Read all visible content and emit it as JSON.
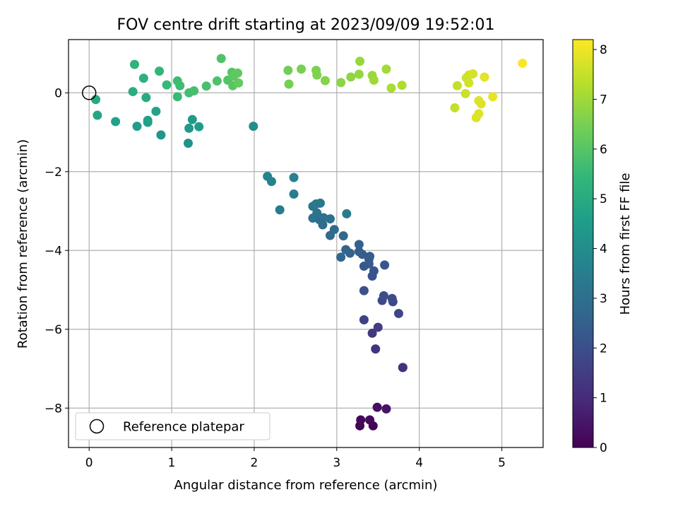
{
  "chart_data": {
    "type": "scatter",
    "title": "FOV centre drift starting at 2023/09/09 19:52:01",
    "xlabel": "Angular distance from reference (arcmin)",
    "ylabel": "Rotation from reference (arcmin)",
    "xlim": [
      -0.25,
      5.5
    ],
    "ylim": [
      -9.0,
      1.35
    ],
    "xticks": [
      0,
      1,
      2,
      3,
      4,
      5
    ],
    "yticks": [
      -8,
      -6,
      -4,
      -2,
      0
    ],
    "grid": true,
    "legend": {
      "placement": "lower-left",
      "entries": [
        "Reference platepar"
      ]
    },
    "reference_point": {
      "x": 0,
      "y": 0
    },
    "colorbar": {
      "label": "Hours from first FF file",
      "range": [
        0,
        8.2
      ],
      "ticks": [
        0,
        1,
        2,
        3,
        4,
        5,
        6,
        7,
        8
      ],
      "colormap": [
        "#440154",
        "#482878",
        "#3e4989",
        "#31688e",
        "#26828e",
        "#1f9e89",
        "#35b779",
        "#6ece58",
        "#b5de2b",
        "#fde725"
      ]
    },
    "series": [
      {
        "points": [
          {
            "x": 3.28,
            "y": -8.45,
            "h": 0.05
          },
          {
            "x": 3.44,
            "y": -8.45,
            "h": 0.1
          },
          {
            "x": 3.29,
            "y": -8.3,
            "h": 0.15
          },
          {
            "x": 3.4,
            "y": -8.3,
            "h": 0.2
          },
          {
            "x": 3.49,
            "y": -7.98,
            "h": 0.35
          },
          {
            "x": 3.6,
            "y": -8.02,
            "h": 0.45
          },
          {
            "x": 3.8,
            "y": -6.97,
            "h": 1.1
          },
          {
            "x": 3.8,
            "y": -6.97,
            "h": 1.15
          },
          {
            "x": 3.47,
            "y": -6.5,
            "h": 1.25
          },
          {
            "x": 3.43,
            "y": -6.1,
            "h": 1.35
          },
          {
            "x": 3.5,
            "y": -5.95,
            "h": 1.45
          },
          {
            "x": 3.33,
            "y": -5.76,
            "h": 1.6
          },
          {
            "x": 3.75,
            "y": -5.6,
            "h": 1.7
          },
          {
            "x": 3.68,
            "y": -5.3,
            "h": 1.8
          },
          {
            "x": 3.55,
            "y": -5.27,
            "h": 1.85
          },
          {
            "x": 3.67,
            "y": -5.22,
            "h": 1.9
          },
          {
            "x": 3.57,
            "y": -5.15,
            "h": 1.95
          },
          {
            "x": 3.33,
            "y": -5.02,
            "h": 2.05
          },
          {
            "x": 3.43,
            "y": -4.65,
            "h": 2.1
          },
          {
            "x": 3.45,
            "y": -4.52,
            "h": 2.15
          },
          {
            "x": 3.58,
            "y": -4.37,
            "h": 2.2
          },
          {
            "x": 3.33,
            "y": -4.4,
            "h": 2.25
          },
          {
            "x": 3.39,
            "y": -4.34,
            "h": 2.3
          },
          {
            "x": 3.39,
            "y": -4.22,
            "h": 2.35
          },
          {
            "x": 3.4,
            "y": -4.15,
            "h": 2.4
          },
          {
            "x": 3.31,
            "y": -4.1,
            "h": 2.45
          },
          {
            "x": 3.27,
            "y": -4.03,
            "h": 2.5
          },
          {
            "x": 3.27,
            "y": -3.85,
            "h": 2.55
          },
          {
            "x": 3.16,
            "y": -4.07,
            "h": 2.6
          },
          {
            "x": 3.11,
            "y": -3.98,
            "h": 2.65
          },
          {
            "x": 3.05,
            "y": -4.17,
            "h": 2.7
          },
          {
            "x": 3.08,
            "y": -3.63,
            "h": 2.75
          },
          {
            "x": 2.97,
            "y": -3.47,
            "h": 2.8
          },
          {
            "x": 2.92,
            "y": -3.62,
            "h": 2.85
          },
          {
            "x": 2.83,
            "y": -3.35,
            "h": 2.9
          },
          {
            "x": 2.79,
            "y": -3.22,
            "h": 2.95
          },
          {
            "x": 2.84,
            "y": -3.17,
            "h": 3.0
          },
          {
            "x": 2.92,
            "y": -3.2,
            "h": 3.05
          },
          {
            "x": 2.71,
            "y": -3.18,
            "h": 3.1
          },
          {
            "x": 2.76,
            "y": -3.05,
            "h": 3.15
          },
          {
            "x": 2.71,
            "y": -2.88,
            "h": 3.2
          },
          {
            "x": 2.75,
            "y": -2.82,
            "h": 3.25
          },
          {
            "x": 2.8,
            "y": -2.8,
            "h": 3.3
          },
          {
            "x": 3.12,
            "y": -3.07,
            "h": 3.35
          },
          {
            "x": 2.31,
            "y": -2.97,
            "h": 3.4
          },
          {
            "x": 2.48,
            "y": -2.57,
            "h": 3.5
          },
          {
            "x": 2.48,
            "y": -2.15,
            "h": 3.6
          },
          {
            "x": 2.21,
            "y": -2.25,
            "h": 3.65
          },
          {
            "x": 2.16,
            "y": -2.12,
            "h": 3.7
          },
          {
            "x": 1.99,
            "y": -0.85,
            "h": 4.0
          },
          {
            "x": 1.2,
            "y": -1.28,
            "h": 4.2
          },
          {
            "x": 0.87,
            "y": -1.07,
            "h": 4.3
          },
          {
            "x": 1.21,
            "y": -0.9,
            "h": 4.4
          },
          {
            "x": 1.33,
            "y": -0.86,
            "h": 4.45
          },
          {
            "x": 1.25,
            "y": -0.68,
            "h": 4.5
          },
          {
            "x": 0.58,
            "y": -0.85,
            "h": 4.55
          },
          {
            "x": 0.71,
            "y": -0.75,
            "h": 4.6
          },
          {
            "x": 0.71,
            "y": -0.7,
            "h": 4.65
          },
          {
            "x": 0.32,
            "y": -0.73,
            "h": 4.7
          },
          {
            "x": 0.81,
            "y": -0.47,
            "h": 4.75
          },
          {
            "x": 0.1,
            "y": -0.57,
            "h": 4.8
          },
          {
            "x": 0.08,
            "y": -0.17,
            "h": 4.9
          },
          {
            "x": 0.69,
            "y": -0.12,
            "h": 5.0
          },
          {
            "x": 0.53,
            "y": 0.03,
            "h": 5.1
          },
          {
            "x": 0.66,
            "y": 0.37,
            "h": 5.2
          },
          {
            "x": 0.55,
            "y": 0.72,
            "h": 5.3
          },
          {
            "x": 0.85,
            "y": 0.55,
            "h": 5.4
          },
          {
            "x": 0.94,
            "y": 0.2,
            "h": 5.5
          },
          {
            "x": 1.07,
            "y": -0.1,
            "h": 5.55
          },
          {
            "x": 1.07,
            "y": 0.3,
            "h": 5.6
          },
          {
            "x": 1.1,
            "y": 0.18,
            "h": 5.65
          },
          {
            "x": 1.21,
            "y": 0.0,
            "h": 5.7
          },
          {
            "x": 1.27,
            "y": 0.05,
            "h": 5.75
          },
          {
            "x": 1.42,
            "y": 0.17,
            "h": 5.8
          },
          {
            "x": 1.55,
            "y": 0.3,
            "h": 5.85
          },
          {
            "x": 1.6,
            "y": 0.87,
            "h": 5.9
          },
          {
            "x": 1.68,
            "y": 0.32,
            "h": 5.95
          },
          {
            "x": 1.73,
            "y": 0.52,
            "h": 6.0
          },
          {
            "x": 1.74,
            "y": 0.18,
            "h": 6.05
          },
          {
            "x": 1.75,
            "y": 0.42,
            "h": 6.1
          },
          {
            "x": 1.8,
            "y": 0.5,
            "h": 6.15
          },
          {
            "x": 1.81,
            "y": 0.25,
            "h": 6.2
          },
          {
            "x": 2.41,
            "y": 0.57,
            "h": 6.4
          },
          {
            "x": 2.42,
            "y": 0.22,
            "h": 6.45
          },
          {
            "x": 2.57,
            "y": 0.6,
            "h": 6.5
          },
          {
            "x": 2.75,
            "y": 0.57,
            "h": 6.55
          },
          {
            "x": 2.76,
            "y": 0.45,
            "h": 6.6
          },
          {
            "x": 2.86,
            "y": 0.31,
            "h": 6.65
          },
          {
            "x": 3.05,
            "y": 0.26,
            "h": 6.75
          },
          {
            "x": 3.17,
            "y": 0.4,
            "h": 6.8
          },
          {
            "x": 3.27,
            "y": 0.47,
            "h": 6.85
          },
          {
            "x": 3.28,
            "y": 0.8,
            "h": 6.9
          },
          {
            "x": 3.43,
            "y": 0.44,
            "h": 6.95
          },
          {
            "x": 3.45,
            "y": 0.32,
            "h": 7.0
          },
          {
            "x": 3.6,
            "y": 0.6,
            "h": 7.05
          },
          {
            "x": 3.66,
            "y": 0.12,
            "h": 7.15
          },
          {
            "x": 3.79,
            "y": 0.19,
            "h": 7.2
          },
          {
            "x": 4.43,
            "y": -0.38,
            "h": 7.45
          },
          {
            "x": 4.46,
            "y": 0.18,
            "h": 7.5
          },
          {
            "x": 4.56,
            "y": -0.02,
            "h": 7.55
          },
          {
            "x": 4.57,
            "y": 0.38,
            "h": 7.6
          },
          {
            "x": 4.6,
            "y": 0.45,
            "h": 7.62
          },
          {
            "x": 4.6,
            "y": 0.25,
            "h": 7.65
          },
          {
            "x": 4.65,
            "y": 0.48,
            "h": 7.7
          },
          {
            "x": 4.69,
            "y": -0.63,
            "h": 7.75
          },
          {
            "x": 4.72,
            "y": -0.53,
            "h": 7.78
          },
          {
            "x": 4.72,
            "y": -0.2,
            "h": 7.8
          },
          {
            "x": 4.75,
            "y": -0.28,
            "h": 7.82
          },
          {
            "x": 4.79,
            "y": 0.4,
            "h": 7.85
          },
          {
            "x": 4.89,
            "y": -0.1,
            "h": 7.9
          },
          {
            "x": 5.25,
            "y": 0.75,
            "h": 8.15
          }
        ]
      }
    ]
  }
}
